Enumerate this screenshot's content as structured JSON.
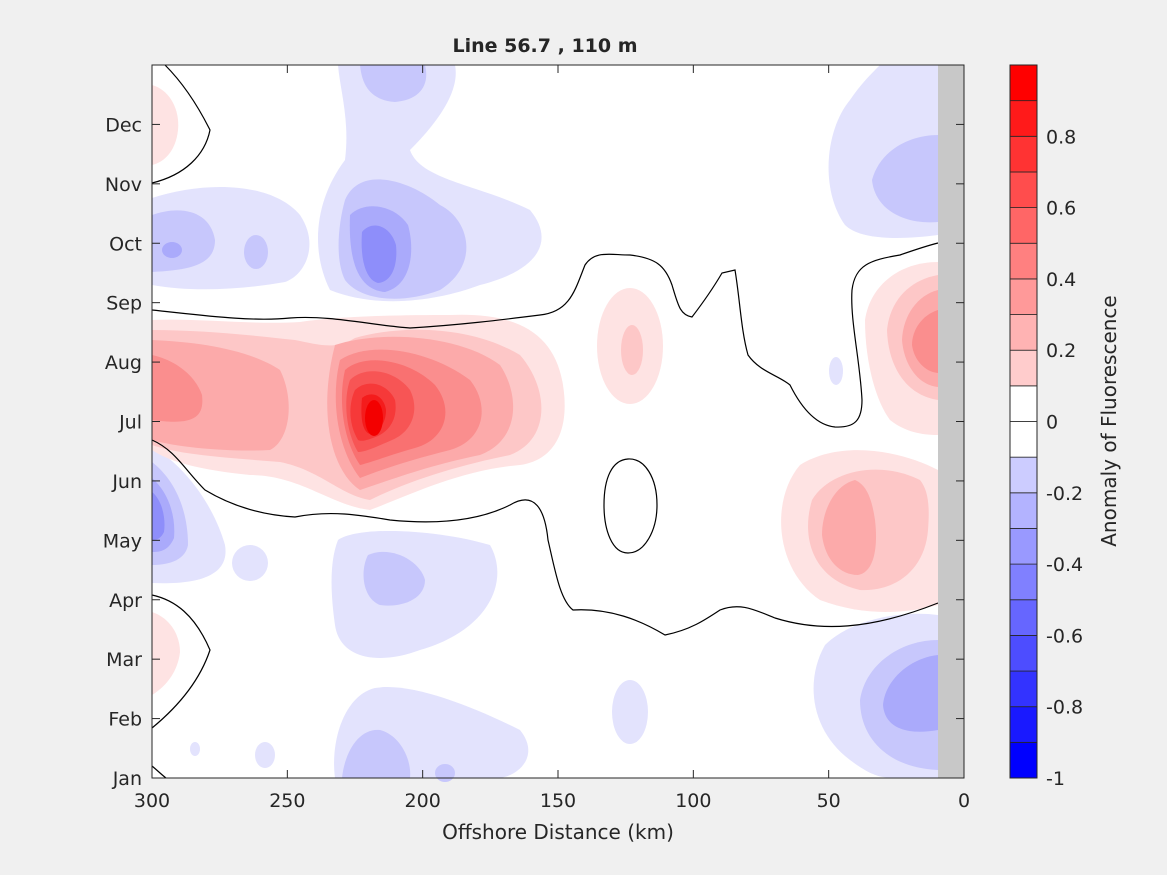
{
  "chart_data": {
    "type": "heatmap",
    "subtype": "filled-contour",
    "title": "Line 56.7 , 110 m",
    "xlabel": "Offshore Distance (km)",
    "ylabel": "",
    "x_reversed": true,
    "xlim": [
      300,
      0
    ],
    "xticks": [
      "300",
      "250",
      "200",
      "150",
      "100",
      "50",
      "0"
    ],
    "yticks": [
      "Jan",
      "Feb",
      "Mar",
      "Apr",
      "May",
      "Jun",
      "Jul",
      "Aug",
      "Sep",
      "Oct",
      "Nov",
      "Dec"
    ],
    "no_data_region_km": [
      0,
      10
    ],
    "zero_contour": true,
    "colorbar": {
      "label": "Anomaly of Fluorescence",
      "clim": [
        -1,
        1
      ],
      "ticks": [
        "-1",
        "-0.8",
        "-0.6",
        "-0.4",
        "-0.2",
        "0",
        "0.2",
        "0.4",
        "0.6",
        "0.8"
      ],
      "levels": [
        -1,
        -0.9,
        -0.8,
        -0.7,
        -0.6,
        -0.5,
        -0.4,
        -0.3,
        -0.2,
        -0.1,
        0,
        0.1,
        0.2,
        0.3,
        0.4,
        0.5,
        0.6,
        0.7,
        0.8,
        0.9,
        1
      ],
      "low_color": "#0000ff",
      "mid_color": "#ffffff",
      "high_color": "#ff0000"
    },
    "features": [
      {
        "x_km": 215,
        "month": 6.6,
        "value": 0.97
      },
      {
        "x_km": 270,
        "month": 6.8,
        "value": 0.45
      },
      {
        "x_km": 18,
        "month": 7.3,
        "value": 0.55
      },
      {
        "x_km": 42,
        "month": 4.6,
        "value": 0.4
      },
      {
        "x_km": 123,
        "month": 7.3,
        "value": 0.25
      },
      {
        "x_km": 298,
        "month": 4.5,
        "value": -0.55
      },
      {
        "x_km": 215,
        "month": 9.2,
        "value": -0.5
      },
      {
        "x_km": 290,
        "month": 9.0,
        "value": -0.3
      },
      {
        "x_km": 210,
        "month": 3.8,
        "value": -0.35
      },
      {
        "x_km": 18,
        "month": 1.3,
        "value": -0.45
      },
      {
        "x_km": 25,
        "month": 10.3,
        "value": -0.3
      },
      {
        "x_km": 300,
        "month": 11.1,
        "value": 0.25
      },
      {
        "x_km": 300,
        "month": 2.3,
        "value": 0.25
      }
    ]
  }
}
